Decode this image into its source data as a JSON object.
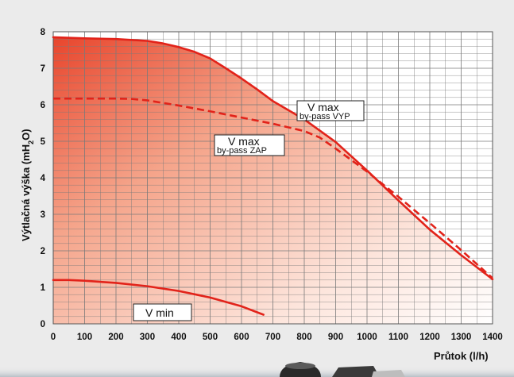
{
  "chart_data": {
    "type": "area",
    "xlabel": "Průtok (l/h)",
    "ylabel_main": "Výtlačná výška (mH",
    "ylabel_sub": "2",
    "ylabel_end": "O)",
    "xlim": [
      0,
      1400
    ],
    "ylim": [
      0,
      8
    ],
    "x_ticks": [
      0,
      100,
      200,
      300,
      400,
      500,
      600,
      700,
      800,
      900,
      1000,
      1100,
      1200,
      1300,
      1400
    ],
    "y_ticks": [
      0,
      1,
      2,
      3,
      4,
      5,
      6,
      7,
      8
    ],
    "grid": true,
    "colors": {
      "curve": "#e2231a",
      "fill_top": "#e8452c",
      "fill_bottom": "#ffffff",
      "grid": "#7a7a7a"
    },
    "series": [
      {
        "name": "V max by-pass VYP",
        "style": "solid",
        "x": [
          0,
          100,
          200,
          300,
          350,
          400,
          450,
          500,
          550,
          600,
          650,
          700,
          800,
          900,
          1000,
          1100,
          1200,
          1300,
          1400
        ],
        "y": [
          7.85,
          7.82,
          7.8,
          7.75,
          7.68,
          7.58,
          7.45,
          7.27,
          7.0,
          6.72,
          6.42,
          6.1,
          5.6,
          4.98,
          4.2,
          3.38,
          2.58,
          1.88,
          1.22
        ]
      },
      {
        "name": "V max by-pass ZAP",
        "style": "dashed",
        "x": [
          0,
          100,
          200,
          250,
          300,
          400,
          500,
          600,
          700,
          800,
          850,
          900,
          1000,
          1100,
          1200,
          1300,
          1400
        ],
        "y": [
          6.17,
          6.17,
          6.17,
          6.16,
          6.12,
          5.98,
          5.82,
          5.65,
          5.48,
          5.28,
          5.1,
          4.8,
          4.17,
          3.48,
          2.76,
          2.02,
          1.25
        ]
      },
      {
        "name": "V min",
        "style": "solid",
        "x": [
          0,
          50,
          100,
          200,
          300,
          400,
          500,
          600,
          670
        ],
        "y": [
          1.2,
          1.2,
          1.18,
          1.12,
          1.03,
          0.9,
          0.72,
          0.48,
          0.25
        ]
      }
    ],
    "annotations": [
      {
        "main": "V max",
        "sub": "by-pass VYP"
      },
      {
        "main": "V max",
        "sub": "by-pass ZAP"
      },
      {
        "main": "V min",
        "sub": ""
      }
    ]
  }
}
